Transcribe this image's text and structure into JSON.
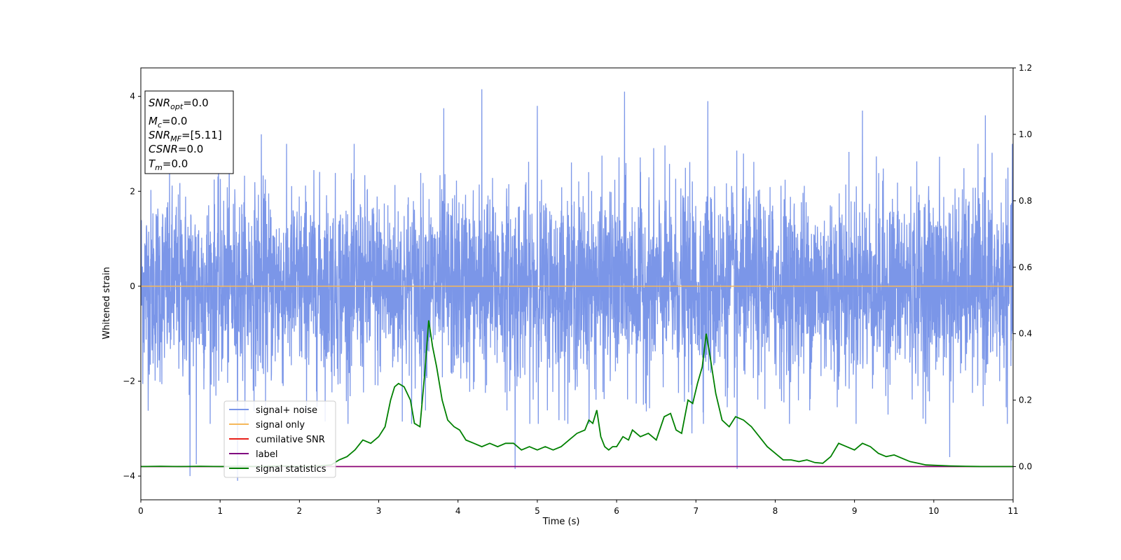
{
  "chart_data": {
    "type": "line",
    "xlabel": "Time (s)",
    "ylabel": "Whitened strain",
    "xlim": [
      0,
      11
    ],
    "ylim": [
      -4.5,
      4.6
    ],
    "y2lim": [
      -0.1,
      1.2
    ],
    "x_ticks": [
      0,
      1,
      2,
      3,
      4,
      5,
      6,
      7,
      8,
      9,
      10,
      11
    ],
    "x_tick_labels": [
      "0",
      "1",
      "2",
      "3",
      "4",
      "5",
      "6",
      "7",
      "8",
      "9",
      "10",
      "11"
    ],
    "y_ticks": [
      -4,
      -2,
      0,
      2,
      4
    ],
    "y_tick_labels": [
      "−4",
      "−2",
      "0",
      "2",
      "4"
    ],
    "y2_ticks": [
      0.0,
      0.2,
      0.4,
      0.6,
      0.8,
      1.0,
      1.2
    ],
    "y2_tick_labels": [
      "0.0",
      "0.2",
      "0.4",
      "0.6",
      "0.8",
      "1.0",
      "1.2"
    ],
    "grid": false,
    "legend_position": "lower-left",
    "info_box": {
      "snr_opt": {
        "base": "SNR",
        "sub": "opt",
        "value": "=0.0"
      },
      "mc": {
        "base": "M",
        "sub": "c",
        "value": "=0.0"
      },
      "snr_mf": {
        "base": "SNR",
        "sub": "MF",
        "value": "=[5.11]"
      },
      "csnr": {
        "base": "CSNR",
        "value": "=0.0"
      },
      "tm": {
        "base": "T",
        "sub": "m",
        "value": "=0.0"
      }
    },
    "series": [
      {
        "name": "signal+ noise",
        "color": "#7b96e8",
        "axis": "left",
        "description_of_samples": "dense white-noise, roughly within ±2.5 with spikes to about ±4.1",
        "envelope": {
          "upper_typical": 2.6,
          "lower_typical": -2.5,
          "peak_max": 4.15,
          "peak_min": -4.1
        },
        "spikes": [
          [
            0.62,
            -4.0
          ],
          [
            0.7,
            -3.75
          ],
          [
            1.22,
            -4.1
          ],
          [
            1.52,
            3.2
          ],
          [
            3.82,
            3.75
          ],
          [
            4.3,
            4.15
          ],
          [
            4.72,
            -3.85
          ],
          [
            5.0,
            3.8
          ],
          [
            6.1,
            4.1
          ],
          [
            6.95,
            -3.1
          ],
          [
            7.15,
            3.9
          ],
          [
            7.52,
            -3.85
          ],
          [
            9.1,
            3.7
          ],
          [
            10.2,
            -3.6
          ],
          [
            10.65,
            3.6
          ]
        ]
      },
      {
        "name": "signal only",
        "color": "#f5b85a",
        "axis": "left",
        "x": [
          0,
          11
        ],
        "y": [
          0,
          0
        ]
      },
      {
        "name": "cumilative SNR",
        "color": "#e8201a",
        "axis": "right",
        "x": [
          0,
          11
        ],
        "y": [
          0,
          0
        ]
      },
      {
        "name": "label",
        "color": "#800080",
        "axis": "right",
        "x": [
          0,
          11
        ],
        "y": [
          0,
          0
        ]
      },
      {
        "name": "signal statistics",
        "color": "#008000",
        "axis": "right",
        "x": [
          0,
          0.25,
          0.5,
          0.75,
          1.0,
          1.25,
          1.5,
          1.75,
          2.0,
          2.2,
          2.4,
          2.5,
          2.6,
          2.7,
          2.8,
          2.9,
          3.0,
          3.08,
          3.15,
          3.2,
          3.25,
          3.32,
          3.4,
          3.45,
          3.52,
          3.58,
          3.63,
          3.68,
          3.73,
          3.8,
          3.87,
          3.95,
          4.02,
          4.1,
          4.2,
          4.3,
          4.4,
          4.5,
          4.6,
          4.7,
          4.8,
          4.9,
          5.0,
          5.1,
          5.2,
          5.3,
          5.4,
          5.5,
          5.6,
          5.65,
          5.7,
          5.75,
          5.8,
          5.85,
          5.9,
          5.95,
          6.0,
          6.08,
          6.15,
          6.2,
          6.3,
          6.4,
          6.5,
          6.6,
          6.68,
          6.75,
          6.82,
          6.9,
          6.96,
          7.02,
          7.08,
          7.13,
          7.18,
          7.25,
          7.33,
          7.42,
          7.5,
          7.6,
          7.7,
          7.8,
          7.9,
          8.0,
          8.1,
          8.2,
          8.3,
          8.4,
          8.5,
          8.6,
          8.7,
          8.8,
          8.9,
          9.0,
          9.1,
          9.2,
          9.3,
          9.4,
          9.5,
          9.6,
          9.7,
          9.8,
          9.9,
          10.0,
          10.2,
          10.4,
          10.6,
          10.8,
          11.0
        ],
        "y": [
          0.0,
          0.001,
          0.0,
          0.001,
          0.0,
          0.001,
          0.0,
          0.002,
          0.0,
          0.001,
          0.005,
          0.02,
          0.03,
          0.05,
          0.08,
          0.07,
          0.09,
          0.12,
          0.2,
          0.24,
          0.25,
          0.24,
          0.2,
          0.13,
          0.12,
          0.28,
          0.44,
          0.36,
          0.3,
          0.2,
          0.14,
          0.12,
          0.11,
          0.08,
          0.07,
          0.06,
          0.07,
          0.06,
          0.07,
          0.07,
          0.05,
          0.06,
          0.05,
          0.06,
          0.05,
          0.06,
          0.08,
          0.1,
          0.11,
          0.14,
          0.13,
          0.17,
          0.09,
          0.06,
          0.05,
          0.06,
          0.06,
          0.09,
          0.08,
          0.11,
          0.09,
          0.1,
          0.08,
          0.15,
          0.16,
          0.11,
          0.1,
          0.2,
          0.19,
          0.25,
          0.3,
          0.4,
          0.33,
          0.22,
          0.14,
          0.12,
          0.15,
          0.14,
          0.12,
          0.09,
          0.06,
          0.04,
          0.02,
          0.02,
          0.015,
          0.02,
          0.012,
          0.01,
          0.03,
          0.07,
          0.06,
          0.05,
          0.07,
          0.06,
          0.04,
          0.03,
          0.035,
          0.025,
          0.015,
          0.01,
          0.005,
          0.004,
          0.002,
          0.001,
          0.0,
          0.0,
          0.0
        ]
      }
    ]
  }
}
